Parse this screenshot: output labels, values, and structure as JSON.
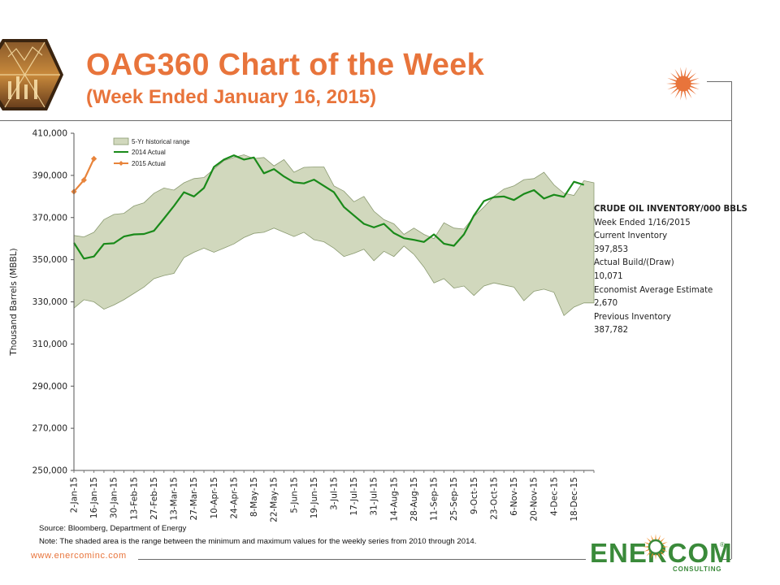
{
  "header": {
    "title": "OAG360 Chart of the Week",
    "subtitle": "(Week Ended January 16, 2015)"
  },
  "info_box": {
    "heading": "CRUDE OIL INVENTORY/000 BBLS",
    "lines": [
      "Week Ended 1/16/2015",
      "Current Inventory",
      "397,853",
      "Actual Build/(Draw)",
      "10,071",
      "Economist Average Estimate",
      "2,670",
      "Previous Inventory",
      "387,782"
    ]
  },
  "footer": {
    "source": "Source: Bloomberg, Department of Energy",
    "note": "Note: The shaded area is the range between the minimum and maximum values for the weekly series from 2010 through 2014.",
    "website": "www.enercominc.com",
    "brand": "ENERCOM",
    "brand_reg": "®",
    "brand_tagline": "CONSULTING"
  },
  "colors": {
    "title": "#e8743b",
    "range_fill": "#d1d8bd",
    "range_stroke": "#8a9a70",
    "series_2014": "#1a8a1a",
    "series_2015": "#e8843b",
    "brand_green": "#3a8a3a"
  },
  "chart_data": {
    "type": "area",
    "ylabel": "Thousand Barrels (MBBL)",
    "ylim": [
      250000,
      410000
    ],
    "yticks": [
      250000,
      270000,
      290000,
      310000,
      330000,
      350000,
      370000,
      390000,
      410000
    ],
    "ytick_labels": [
      "250,000",
      "270,000",
      "290,000",
      "310,000",
      "330,000",
      "350,000",
      "370,000",
      "390,000",
      "410,000"
    ],
    "xtick_labels": [
      "2-Jan-15",
      "16-Jan-15",
      "30-Jan-15",
      "13-Feb-15",
      "27-Feb-15",
      "13-Mar-15",
      "27-Mar-15",
      "10-Apr-15",
      "24-Apr-15",
      "8-May-15",
      "22-May-15",
      "5-Jun-15",
      "19-Jun-15",
      "3-Jul-15",
      "17-Jul-15",
      "31-Jul-15",
      "14-Aug-15",
      "28-Aug-15",
      "11-Sep-15",
      "25-Sep-15",
      "9-Oct-15",
      "23-Oct-15",
      "6-Nov-15",
      "20-Nov-15",
      "4-Dec-15",
      "18-Dec-15"
    ],
    "weeks": 53,
    "legend": [
      "5-Yr historical range",
      "2014 Actual",
      "2015 Actual"
    ],
    "legend_position": "top-left",
    "grid": false,
    "range": {
      "name": "5-Yr historical range",
      "max": [
        361500,
        360800,
        363000,
        369000,
        371500,
        372000,
        375500,
        377000,
        381500,
        384000,
        383000,
        386500,
        388500,
        389000,
        393000,
        397000,
        398500,
        399800,
        398000,
        398500,
        394500,
        397500,
        391500,
        393800,
        394000,
        394000,
        385000,
        382500,
        377500,
        380000,
        373000,
        369000,
        367000,
        362000,
        365000,
        362000,
        360000,
        367500,
        365000,
        364500,
        370500,
        375000,
        380000,
        383500,
        385000,
        388000,
        388500,
        391500,
        385500,
        381500,
        380500,
        387500,
        386500
      ],
      "min": [
        327000,
        331000,
        330000,
        326500,
        328500,
        331000,
        334000,
        337000,
        341000,
        342500,
        343500,
        351000,
        353500,
        355500,
        353500,
        355500,
        357500,
        360500,
        362500,
        363000,
        365000,
        363000,
        361000,
        363000,
        359500,
        358500,
        355500,
        351500,
        353000,
        355000,
        349500,
        354000,
        351500,
        356500,
        352500,
        346500,
        339000,
        341000,
        336500,
        337500,
        333000,
        337500,
        339000,
        338000,
        337000,
        330500,
        335000,
        336000,
        334500,
        323500,
        327500,
        329500,
        329500
      ]
    },
    "series": [
      {
        "name": "2014 Actual",
        "values": [
          358000,
          350500,
          351500,
          357500,
          357800,
          361000,
          362000,
          362200,
          363700,
          369500,
          375500,
          382000,
          380000,
          384000,
          394000,
          397500,
          399500,
          397500,
          398500,
          391000,
          393000,
          389500,
          386700,
          386200,
          388000,
          385000,
          382000,
          375000,
          371000,
          367000,
          365300,
          367000,
          362600,
          360200,
          359400,
          358400,
          362000,
          357600,
          356600,
          362000,
          371000,
          377800,
          379700,
          380000,
          378300,
          381200,
          383000,
          379000,
          380800,
          379800,
          387000,
          385500
        ]
      },
      {
        "name": "2015 Actual",
        "values": [
          382300,
          387800,
          397900
        ]
      }
    ]
  }
}
